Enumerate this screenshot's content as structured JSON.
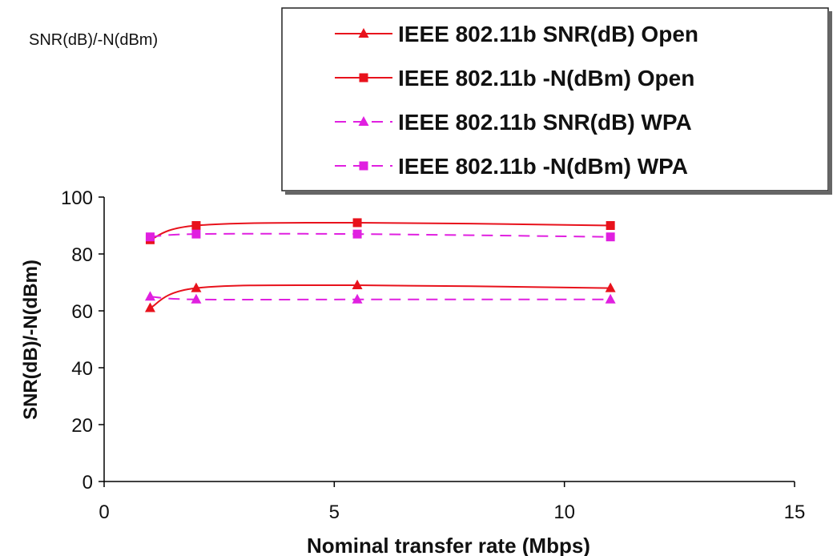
{
  "chart_data": {
    "type": "line",
    "title": "SNR(dB)/-N(dBm)",
    "xlabel": "Nominal transfer rate (Mbps)",
    "ylabel": "SNR(dB)/-N(dBm)",
    "xlim": [
      0,
      15
    ],
    "ylim": [
      0,
      100
    ],
    "xticks": [
      0,
      5,
      10,
      15
    ],
    "yticks": [
      0,
      20,
      40,
      60,
      80,
      100
    ],
    "grid": false,
    "legend_position": "top-right",
    "x": [
      1,
      2,
      5.5,
      11
    ],
    "series": [
      {
        "name": "IEEE 802.11b SNR(dB) Open",
        "values": [
          61,
          68,
          69,
          68
        ],
        "color": "#e8121c",
        "marker": "triangle",
        "dash": false
      },
      {
        "name": "IEEE 802.11b -N(dBm) Open",
        "values": [
          85,
          90,
          91,
          90
        ],
        "color": "#e8121c",
        "marker": "square",
        "dash": false
      },
      {
        "name": "IEEE 802.11b SNR(dB) WPA",
        "values": [
          65,
          64,
          64,
          64
        ],
        "color": "#e020e0",
        "marker": "triangle",
        "dash": true
      },
      {
        "name": "IEEE 802.11b -N(dBm) WPA",
        "values": [
          86,
          87,
          87,
          86
        ],
        "color": "#e020e0",
        "marker": "square",
        "dash": true
      }
    ]
  }
}
